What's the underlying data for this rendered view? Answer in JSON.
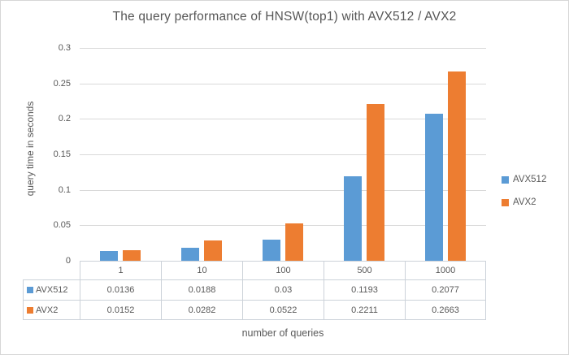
{
  "window": {
    "background": "#ffffff",
    "border_color": "#d6d6d6"
  },
  "colors": {
    "series_blue": "#5b9bd5",
    "series_orange": "#ed7d31",
    "gridline": "#d9d9d9",
    "table_border": "#ccd2d9",
    "text": "#595959"
  },
  "chart_data": {
    "type": "bar",
    "title": "The query performance of HNSW(top1) with AVX512 / AVX2",
    "xlabel": "number of queries",
    "ylabel": "query time in seconds",
    "categories": [
      "1",
      "10",
      "100",
      "500",
      "1000"
    ],
    "series": [
      {
        "name": "AVX512",
        "color": "#5b9bd5",
        "values": [
          0.0136,
          0.0188,
          0.03,
          0.1193,
          0.2077
        ],
        "display": [
          "0.0136",
          "0.0188",
          "0.03",
          "0.1193",
          "0.2077"
        ]
      },
      {
        "name": "AVX2",
        "color": "#ed7d31",
        "values": [
          0.0152,
          0.0282,
          0.0522,
          0.2211,
          0.2663
        ],
        "display": [
          "0.0152",
          "0.0282",
          "0.0522",
          "0.2211",
          "0.2663"
        ]
      }
    ],
    "ylim": [
      0,
      0.3
    ],
    "ytick_step": 0.05,
    "yticks": [
      "0",
      "0.05",
      "0.1",
      "0.15",
      "0.2",
      "0.25",
      "0.3"
    ],
    "grid": true,
    "legend_position": "right",
    "data_table_shown": true
  },
  "legend": {
    "items": [
      {
        "label": "AVX512",
        "color": "#5b9bd5"
      },
      {
        "label": "AVX2",
        "color": "#ed7d31"
      }
    ]
  }
}
